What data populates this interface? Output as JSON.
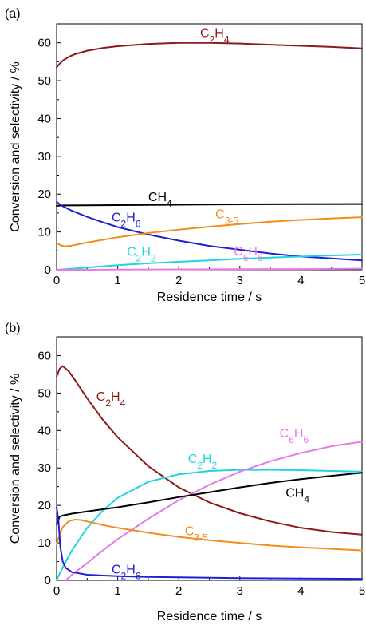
{
  "chart_data": [
    {
      "panel_label": "(a)",
      "type": "line",
      "xlabel": "Residence time / s",
      "ylabel": "Conversion and selectivity / %",
      "xlim": [
        0,
        5
      ],
      "ylim": [
        0,
        65
      ],
      "xticks": [
        "0",
        "1",
        "2",
        "3",
        "4",
        "5"
      ],
      "yticks": [
        "0",
        "10",
        "20",
        "30",
        "40",
        "50",
        "60"
      ],
      "grid": false,
      "series": [
        {
          "name": "C2H4",
          "label_main": "C",
          "label_sub": "2",
          "label_main2": "H",
          "label_sub2": "4",
          "color": "#8b1a1a",
          "label_x": 2.35,
          "label_y": 61.5,
          "x": [
            0,
            0.05,
            0.1,
            0.2,
            0.3,
            0.5,
            0.75,
            1.0,
            1.5,
            2.0,
            2.5,
            3.0,
            3.5,
            4.0,
            4.5,
            5.0
          ],
          "y": [
            53.5,
            54.5,
            55.3,
            56.3,
            57.0,
            57.9,
            58.6,
            59.1,
            59.7,
            60.0,
            60.0,
            59.8,
            59.5,
            59.2,
            58.9,
            58.5
          ]
        },
        {
          "name": "CH4",
          "label_main": "CH",
          "label_sub": "4",
          "label_main2": "",
          "label_sub2": "",
          "color": "#000000",
          "label_x": 1.5,
          "label_y": 18.2,
          "x": [
            0,
            0.1,
            0.5,
            1,
            2,
            3,
            4,
            5
          ],
          "y": [
            16.9,
            17.0,
            17.05,
            17.1,
            17.2,
            17.3,
            17.35,
            17.4
          ]
        },
        {
          "name": "C2H6",
          "label_main": "C",
          "label_sub": "2",
          "label_main2": "H",
          "label_sub2": "6",
          "color": "#1f1fd6",
          "label_x": 0.9,
          "label_y": 12.8,
          "x": [
            0,
            0.05,
            0.1,
            0.25,
            0.5,
            0.75,
            1.0,
            1.5,
            2.0,
            2.5,
            3.0,
            3.5,
            4.0,
            4.5,
            5.0
          ],
          "y": [
            18.0,
            17.3,
            16.8,
            15.6,
            14.0,
            12.6,
            11.3,
            9.3,
            7.7,
            6.3,
            5.3,
            4.3,
            3.5,
            3.0,
            2.5
          ]
        },
        {
          "name": "C3-5",
          "label_main": "C",
          "label_sub": "3-5",
          "label_main2": "",
          "label_sub2": "",
          "color": "#f28c1c",
          "label_x": 2.6,
          "label_y": 13.6,
          "x": [
            0,
            0.05,
            0.1,
            0.15,
            0.25,
            0.5,
            0.75,
            1.0,
            1.5,
            2.0,
            2.5,
            3.0,
            3.5,
            4.0,
            4.5,
            5.0
          ],
          "y": [
            7.2,
            6.6,
            6.3,
            6.2,
            6.4,
            7.2,
            7.9,
            8.6,
            9.7,
            10.6,
            11.4,
            12.1,
            12.7,
            13.2,
            13.6,
            13.9
          ]
        },
        {
          "name": "C2H2",
          "label_main": "C",
          "label_sub": "2",
          "label_main2": "H",
          "label_sub2": "2",
          "color": "#22d3e0",
          "label_x": 1.15,
          "label_y": 3.7,
          "x": [
            0,
            0.1,
            0.25,
            0.5,
            1.0,
            1.5,
            2.0,
            2.5,
            3.0,
            3.5,
            4.0,
            4.5,
            5.0
          ],
          "y": [
            0.0,
            0.1,
            0.3,
            0.6,
            1.2,
            1.7,
            2.1,
            2.5,
            2.9,
            3.2,
            3.5,
            3.8,
            4.0
          ]
        },
        {
          "name": "C6H6",
          "label_main": "C",
          "label_sub": "6",
          "label_main2": "H",
          "label_sub2": "6",
          "color": "#e879e8",
          "label_x": 2.9,
          "label_y": 3.8,
          "x": [
            0,
            0.5,
            1,
            2,
            3,
            4,
            5
          ],
          "y": [
            0.0,
            0.0,
            0.05,
            0.1,
            0.15,
            0.2,
            0.3
          ]
        }
      ]
    },
    {
      "panel_label": "(b)",
      "type": "line",
      "xlabel": "Residence time / s",
      "ylabel": "Conversion and selectivity / %",
      "xlim": [
        0,
        5
      ],
      "ylim": [
        0,
        65
      ],
      "xticks": [
        "0",
        "1",
        "2",
        "3",
        "4",
        "5"
      ],
      "yticks": [
        "0",
        "10",
        "20",
        "30",
        "40",
        "50",
        "60"
      ],
      "grid": false,
      "series": [
        {
          "name": "C2H4",
          "label_main": "C",
          "label_sub": "2",
          "label_main2": "H",
          "label_sub2": "4",
          "color": "#8b1a1a",
          "label_x": 0.65,
          "label_y": 48.0,
          "x": [
            0,
            0.05,
            0.1,
            0.2,
            0.3,
            0.5,
            0.75,
            1.0,
            1.5,
            2.0,
            2.5,
            3.0,
            3.5,
            4.0,
            4.5,
            5.0
          ],
          "y": [
            54.5,
            56.5,
            57.2,
            55.8,
            53.5,
            48.6,
            43.0,
            38.2,
            30.5,
            24.8,
            20.8,
            17.9,
            15.7,
            14.0,
            12.9,
            12.2
          ]
        },
        {
          "name": "C2H2",
          "label_main": "C",
          "label_sub": "2",
          "label_main2": "H",
          "label_sub2": "2",
          "color": "#22d3e0",
          "label_x": 2.15,
          "label_y": 31.3,
          "x": [
            0,
            0.1,
            0.25,
            0.5,
            0.75,
            1.0,
            1.5,
            2.0,
            2.5,
            3.0,
            3.5,
            4.0,
            4.5,
            5.0
          ],
          "y": [
            0.0,
            3.5,
            8.0,
            14.0,
            18.5,
            22.0,
            26.3,
            28.3,
            29.2,
            29.5,
            29.5,
            29.4,
            29.2,
            29.0
          ]
        },
        {
          "name": "C6H6",
          "label_main": "C",
          "label_sub": "6",
          "label_main2": "H",
          "label_sub2": "6",
          "color": "#e879e8",
          "label_x": 3.65,
          "label_y": 38.2,
          "x": [
            0.15,
            0.25,
            0.5,
            0.75,
            1.0,
            1.5,
            2.0,
            2.5,
            3.0,
            3.5,
            4.0,
            4.5,
            5.0
          ],
          "y": [
            0.0,
            1.5,
            4.6,
            7.9,
            11.0,
            16.4,
            21.4,
            25.5,
            29.0,
            31.8,
            34.0,
            35.8,
            37.0
          ]
        },
        {
          "name": "CH4",
          "label_main": "CH",
          "label_sub": "4",
          "label_main2": "",
          "label_sub2": "",
          "color": "#000000",
          "label_x": 3.75,
          "label_y": 22.3,
          "x": [
            0,
            0.05,
            0.1,
            0.25,
            0.5,
            1.0,
            1.5,
            2.0,
            2.5,
            3.0,
            3.5,
            4.0,
            4.5,
            5.0
          ],
          "y": [
            15.0,
            17.0,
            17.3,
            17.8,
            18.4,
            19.5,
            20.8,
            22.2,
            23.5,
            24.8,
            26.0,
            27.0,
            27.9,
            28.7
          ]
        },
        {
          "name": "C3-5",
          "label_main": "C",
          "label_sub": "3-5",
          "label_main2": "",
          "label_sub2": "",
          "color": "#f28c1c",
          "label_x": 2.1,
          "label_y": 12.0,
          "x": [
            0,
            0.05,
            0.1,
            0.2,
            0.3,
            0.4,
            0.5,
            0.75,
            1.0,
            1.5,
            2.0,
            2.5,
            3.0,
            3.5,
            4.0,
            4.5,
            5.0
          ],
          "y": [
            9.5,
            12.2,
            14.2,
            15.8,
            16.2,
            16.1,
            15.7,
            14.8,
            14.0,
            12.7,
            11.6,
            10.7,
            10.0,
            9.3,
            8.8,
            8.4,
            8.0
          ]
        },
        {
          "name": "C2H6",
          "label_main": "C",
          "label_sub": "2",
          "label_main2": "H",
          "label_sub2": "6",
          "color": "#1f1fd6",
          "label_x": 0.9,
          "label_y": 1.8,
          "x": [
            0,
            0.03,
            0.06,
            0.1,
            0.15,
            0.25,
            0.5,
            1.0,
            1.5,
            2.0,
            3.0,
            4.0,
            5.0
          ],
          "y": [
            19.5,
            16.0,
            9.0,
            5.0,
            3.3,
            2.2,
            1.5,
            1.1,
            0.9,
            0.8,
            0.6,
            0.5,
            0.4
          ]
        }
      ]
    }
  ]
}
